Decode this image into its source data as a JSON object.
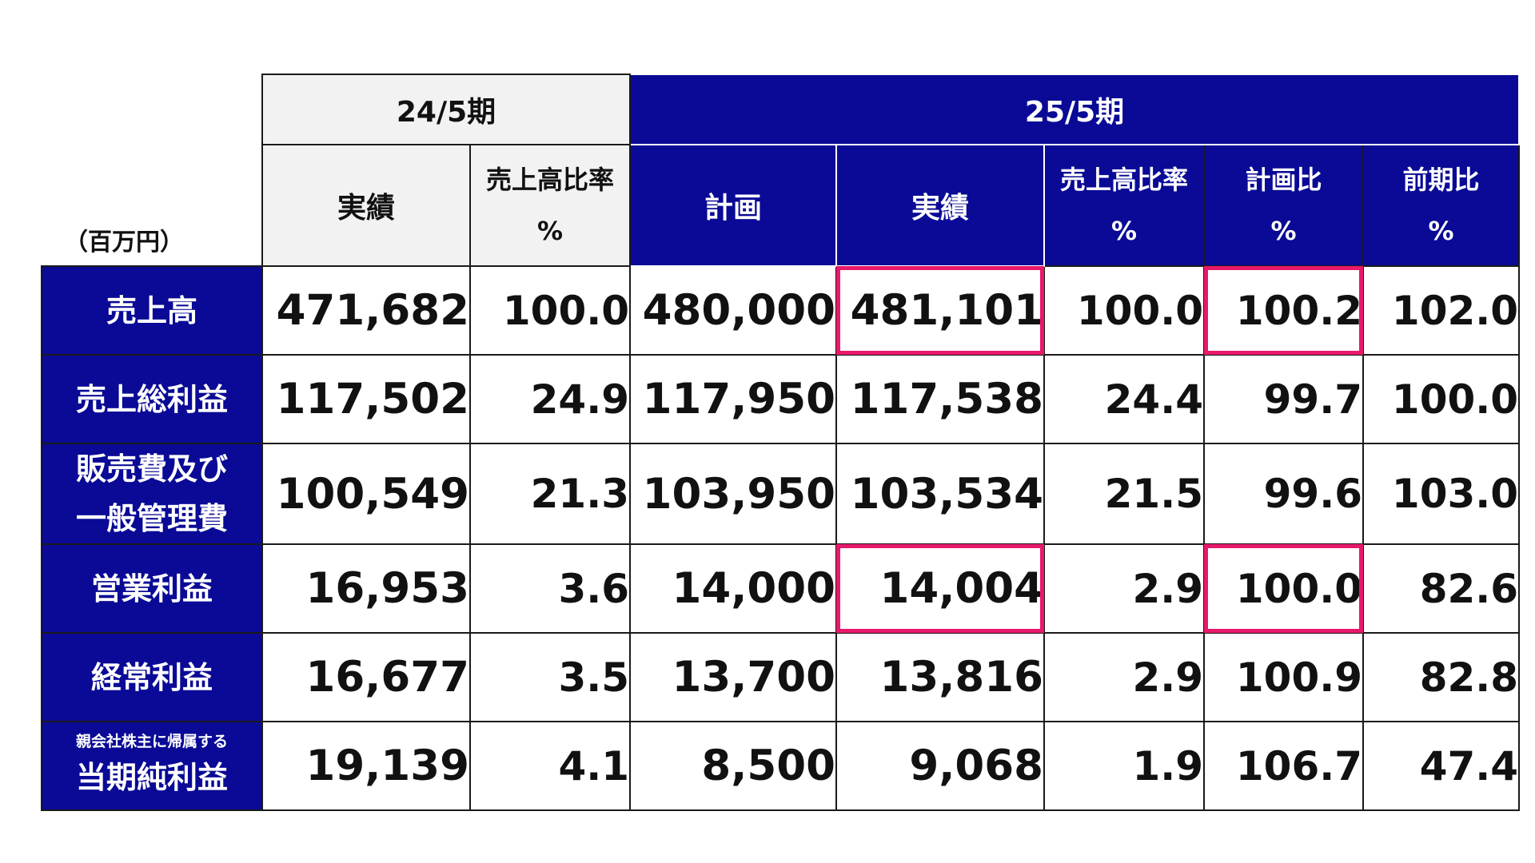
{
  "unit_label": "（百万円）",
  "periods": {
    "prev": "24/5期",
    "curr": "25/5期"
  },
  "headers": {
    "prev_actual": "実績",
    "prev_ratio": "売上高比率",
    "prev_ratio_unit": "%",
    "plan": "計画",
    "actual": "実績",
    "ratio": "売上高比率",
    "ratio_unit": "%",
    "vs_plan": "計画比",
    "vs_plan_unit": "%",
    "yoy": "前期比",
    "yoy_unit": "%"
  },
  "rows": [
    {
      "label": "売上高",
      "prev_actual": "471,682",
      "prev_ratio": "100.0",
      "plan": "480,000",
      "actual": "481,101",
      "ratio": "100.0",
      "vs_plan": "100.2",
      "yoy": "102.0"
    },
    {
      "label": "売上総利益",
      "prev_actual": "117,502",
      "prev_ratio": "24.9",
      "plan": "117,950",
      "actual": "117,538",
      "ratio": "24.4",
      "vs_plan": "99.7",
      "yoy": "100.0"
    },
    {
      "label_line1": "販売費及び",
      "label_line2": "一般管理費",
      "prev_actual": "100,549",
      "prev_ratio": "21.3",
      "plan": "103,950",
      "actual": "103,534",
      "ratio": "21.5",
      "vs_plan": "99.6",
      "yoy": "103.0"
    },
    {
      "label": "営業利益",
      "prev_actual": "16,953",
      "prev_ratio": "3.6",
      "plan": "14,000",
      "actual": "14,004",
      "ratio": "2.9",
      "vs_plan": "100.0",
      "yoy": "82.6"
    },
    {
      "label": "経常利益",
      "prev_actual": "16,677",
      "prev_ratio": "3.5",
      "plan": "13,700",
      "actual": "13,816",
      "ratio": "2.9",
      "vs_plan": "100.9",
      "yoy": "82.8"
    },
    {
      "label_small": "親会社株主に帰属する",
      "label": "当期純利益",
      "prev_actual": "19,139",
      "prev_ratio": "4.1",
      "plan": "8,500",
      "actual": "9,068",
      "ratio": "1.9",
      "vs_plan": "106.7",
      "yoy": "47.4"
    }
  ],
  "highlight_color": "#e8196a",
  "header_color": "#0a0a96"
}
